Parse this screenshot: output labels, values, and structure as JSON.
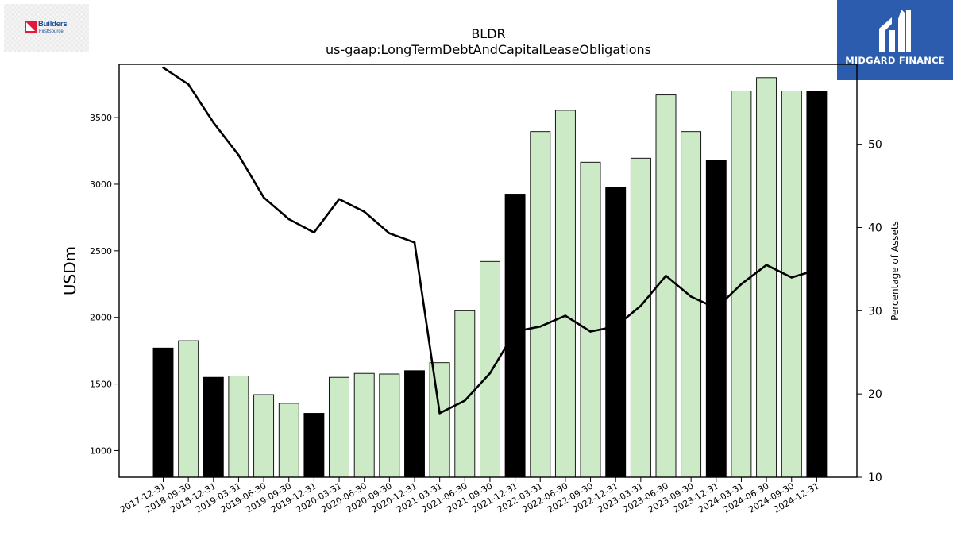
{
  "logos": {
    "left_name": "Builders",
    "left_sub": "FirstSource",
    "right_name": "MIDGARD FINANCE"
  },
  "colors": {
    "highlight_bar": "#000000",
    "normal_bar": "#cdeac7",
    "line": "#000000",
    "brand_blue": "#2b5cae"
  },
  "chart_data": {
    "type": "bar",
    "title": "BLDR",
    "subtitle": "us-gaap:LongTermDebtAndCapitalLeaseObligations",
    "ylabel": "USDm",
    "y2label": "Percentage of Assets",
    "ylim": [
      800,
      3900
    ],
    "y2lim": [
      10,
      59.6
    ],
    "yticks": [
      1000,
      1500,
      2000,
      2500,
      3000,
      3500
    ],
    "y2ticks": [
      10,
      20,
      30,
      40,
      50
    ],
    "categories": [
      "2017-12-31",
      "2018-09-30",
      "2018-12-31",
      "2019-03-31",
      "2019-06-30",
      "2019-09-30",
      "2019-12-31",
      "2020-03-31",
      "2020-06-30",
      "2020-09-30",
      "2020-12-31",
      "2021-03-31",
      "2021-06-30",
      "2021-09-30",
      "2021-12-31",
      "2022-03-31",
      "2022-06-30",
      "2022-09-30",
      "2022-12-31",
      "2023-03-31",
      "2023-06-30",
      "2023-09-30",
      "2023-12-31",
      "2024-03-31",
      "2024-06-30",
      "2024-09-30",
      "2024-12-31"
    ],
    "series": [
      {
        "type": "bar",
        "axis": "left",
        "values": [
          1770,
          1825,
          1550,
          1560,
          1420,
          1355,
          1280,
          1550,
          1580,
          1575,
          1600,
          1660,
          2050,
          2420,
          2925,
          3395,
          3555,
          3165,
          2975,
          3195,
          3670,
          3395,
          3180,
          3700,
          3800,
          3700,
          3700
        ],
        "year_end": [
          true,
          false,
          true,
          false,
          false,
          false,
          true,
          false,
          false,
          false,
          true,
          false,
          false,
          false,
          true,
          false,
          false,
          false,
          true,
          false,
          false,
          false,
          true,
          false,
          false,
          false,
          true
        ]
      },
      {
        "type": "line",
        "axis": "right",
        "values": [
          59.2,
          57.2,
          52.6,
          48.7,
          43.6,
          41.0,
          39.4,
          43.4,
          41.9,
          39.3,
          38.2,
          17.7,
          19.2,
          22.5,
          27.5,
          28.1,
          29.4,
          27.5,
          28.1,
          30.6,
          34.2,
          31.7,
          30.3,
          33.2,
          35.5,
          34.0,
          34.9
        ]
      }
    ]
  }
}
